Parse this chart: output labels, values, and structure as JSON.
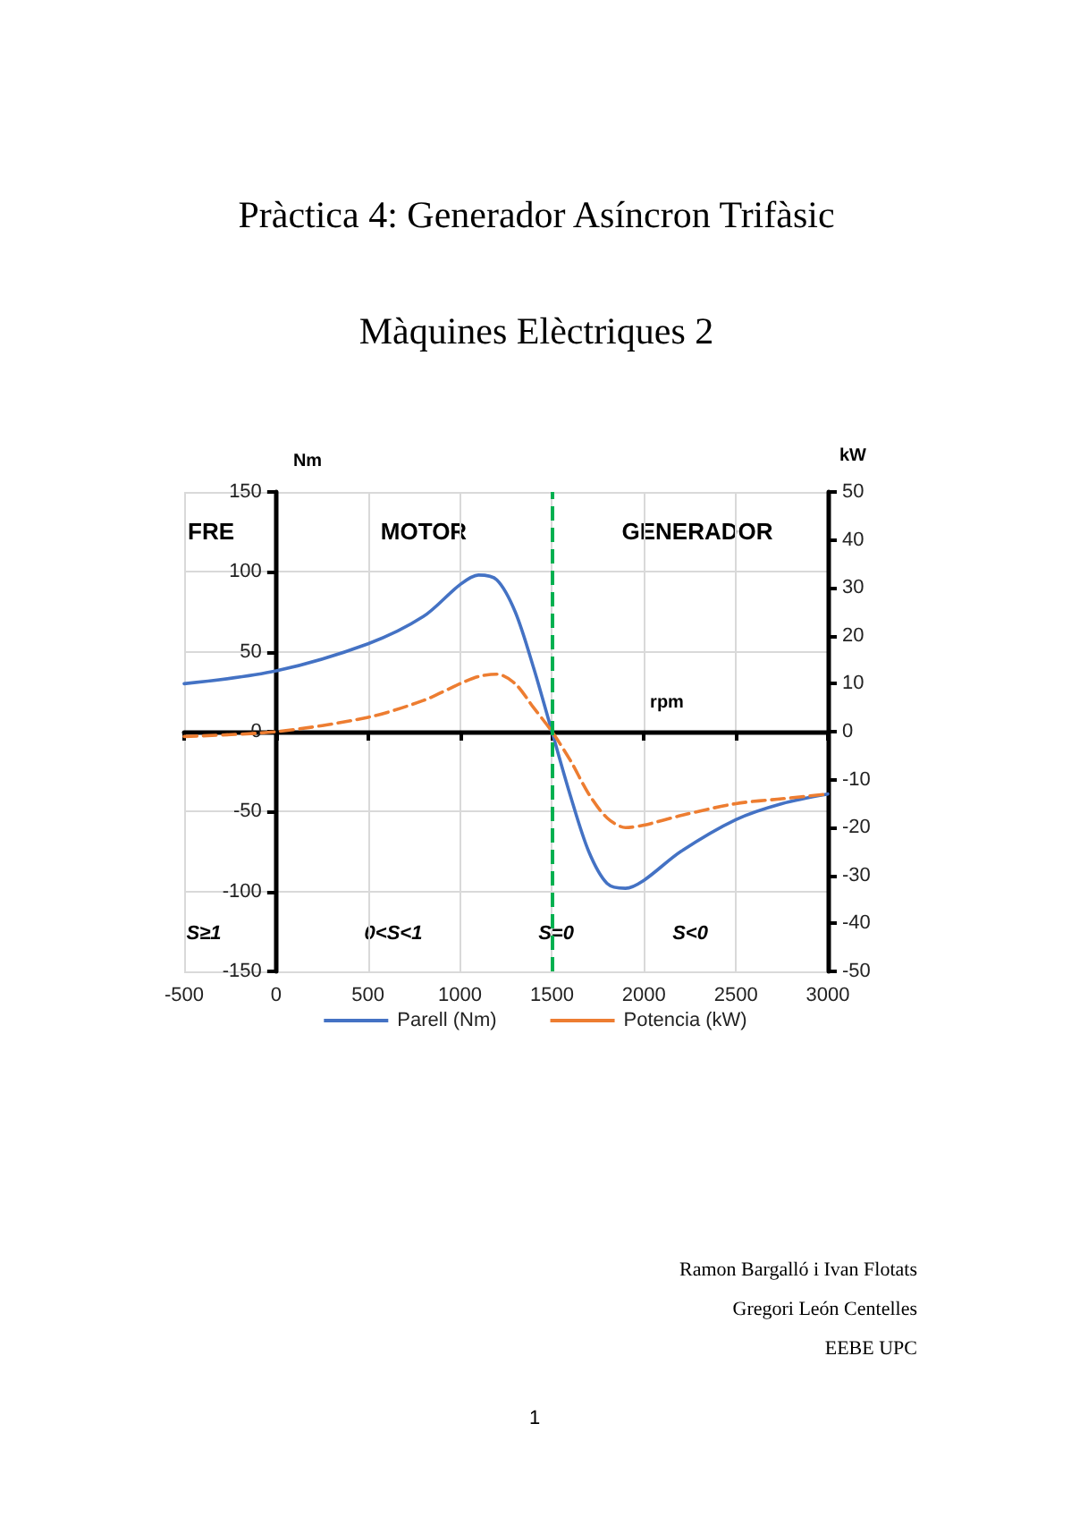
{
  "chart_data": {
    "type": "line",
    "title": "Pràctica 4: Generador Asíncron Trifàsic",
    "subtitle": "Màquines Elèctriques 2",
    "xlabel": "rpm",
    "ylabel": "Nm",
    "y2label": "kW",
    "x": [
      -500,
      0,
      500,
      800,
      1000,
      1100,
      1200,
      1300,
      1400,
      1500,
      1600,
      1700,
      1800,
      1900,
      2000,
      2200,
      2500,
      2750,
      3000
    ],
    "series": [
      {
        "name": "Parell (Nm)",
        "color": "#4472c4",
        "line_style": "solid",
        "values": [
          30,
          38,
          55,
          72,
          92,
          98,
          95,
          75,
          40,
          0,
          -40,
          -75,
          -95,
          -98,
          -93,
          -75,
          -55,
          -45,
          -39
        ]
      },
      {
        "name": "Potencia (kW)",
        "color": "#ed7d31",
        "line_style": "dashed",
        "axis": "y2",
        "values": [
          -1,
          0,
          3,
          6.5,
          10,
          11.5,
          12,
          10,
          5,
          0,
          -6,
          -13,
          -18,
          -20,
          -19.5,
          -17.5,
          -15,
          -14,
          -13
        ]
      }
    ],
    "xlim": [
      -500,
      3000
    ],
    "xticks": [
      -500,
      0,
      500,
      1000,
      1500,
      2000,
      2500,
      3000
    ],
    "ylim": [
      -150,
      150
    ],
    "yticks": [
      -150,
      -100,
      -50,
      0,
      50,
      100,
      150
    ],
    "y2lim": [
      -50,
      50
    ],
    "y2ticks": [
      -50,
      -40,
      -30,
      -20,
      -10,
      0,
      10,
      20,
      30,
      40,
      50
    ],
    "ref_lines": [
      {
        "axis": "x",
        "value": 1500,
        "color": "#00b050",
        "line_style": "dashed"
      }
    ],
    "grid": true,
    "legend": "bottom",
    "marker": "none",
    "annotations": [
      "FRE",
      "MOTOR",
      "GENERADOR",
      "S≥1",
      "0<S<1",
      "S=0",
      "S<0",
      "Ramon Bargalló i Ivan Flotats",
      "Gregori León Centelles",
      "EEBE UPC",
      "1"
    ]
  }
}
